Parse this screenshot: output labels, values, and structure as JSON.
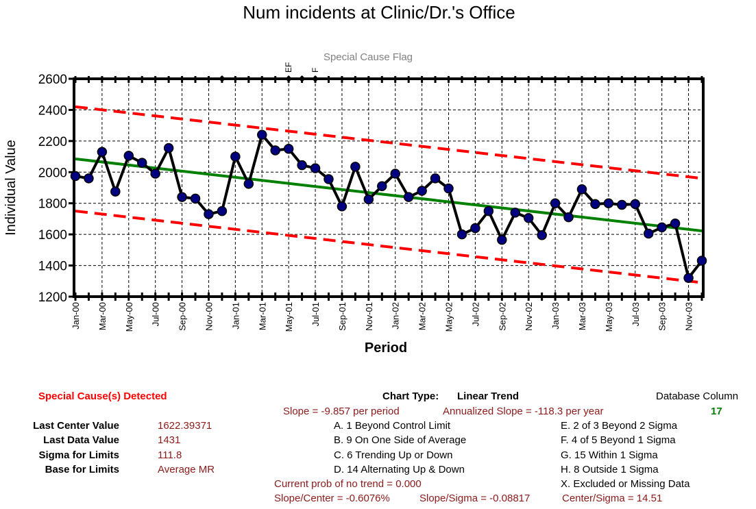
{
  "chart_data": {
    "type": "line",
    "title": "Num incidents at Clinic/Dr.'s Office",
    "xlabel": "Period",
    "ylabel": "Individual Value",
    "ylim": [
      1200,
      2600
    ],
    "yticks": [
      1200,
      1400,
      1600,
      1800,
      2000,
      2200,
      2400,
      2600
    ],
    "x_tick_labels": [
      "Jan-00",
      "Mar-00",
      "May-00",
      "Jul-00",
      "Sep-00",
      "Nov-00",
      "Jan-01",
      "Mar-01",
      "May-01",
      "Jul-01",
      "Sep-01",
      "Nov-01",
      "Jan-02",
      "Mar-02",
      "May-02",
      "Jul-02",
      "Sep-02",
      "Nov-02",
      "Jan-03",
      "Mar-03",
      "May-03",
      "Jul-03",
      "Sep-03",
      "Nov-03"
    ],
    "periods": 48,
    "grid": true,
    "series": [
      {
        "name": "",
        "values": [
          1975,
          1960,
          2130,
          1875,
          2105,
          2060,
          1990,
          2155,
          1840,
          1830,
          1730,
          1750,
          2100,
          1925,
          2240,
          2140,
          2150,
          2045,
          2025,
          1955,
          1780,
          2035,
          1825,
          1910,
          1990,
          1840,
          1880,
          1960,
          1895,
          1600,
          1640,
          1750,
          1565,
          1740,
          1705,
          1595,
          1800,
          1710,
          1890,
          1795,
          1800,
          1790,
          1795,
          1605,
          1645,
          1670,
          1320,
          1431
        ]
      }
    ],
    "center_line": {
      "start": 2085,
      "end": 1622.39371
    },
    "ucl": {
      "start": 2420,
      "end": 1960
    },
    "lcl": {
      "start": 1750,
      "end": 1290
    },
    "special_cause_flag_title": "Special Cause Flag",
    "flags": [
      {
        "index": 11,
        "label": ""
      },
      {
        "index": 16,
        "label": "EF"
      },
      {
        "index": 17,
        "label": ""
      },
      {
        "index": 18,
        "label": "F"
      }
    ],
    "colors": {
      "line": "#000000",
      "marker": "#000080",
      "center": "#008000",
      "limits": "#ff0000"
    }
  },
  "panel": {
    "special_cause": "Special Cause(s) Detected",
    "rows": [
      {
        "label": "Last Center Value",
        "value": "1622.39371"
      },
      {
        "label": "Last Data Value",
        "value": "1431"
      },
      {
        "label": "Sigma for Limits",
        "value": "111.8"
      },
      {
        "label": "Base for Limits",
        "value": "Average MR"
      }
    ],
    "chart_type_label": "Chart Type:",
    "chart_type_value": "Linear Trend",
    "slope": "Slope = -9.857 per period",
    "annualized": "Annualized Slope = -118.3 per year",
    "rules_left": [
      "A.  1 Beyond Control Limit",
      "B.  9 On One Side of Average",
      "C.  6 Trending Up or Down",
      "D.  14 Alternating  Up & Down"
    ],
    "rules_right": [
      "E.  2 of 3 Beyond 2 Sigma",
      "F.  4 of 5 Beyond 1 Sigma",
      "G.  15 Within 1 Sigma",
      "H.  8 Outside 1 Sigma",
      "X.  Excluded or Missing Data"
    ],
    "prob": "Current prob of no trend = 0.000",
    "slope_center": "Slope/Center = -0.6076%",
    "slope_sigma": "Slope/Sigma = -0.08817",
    "center_sigma": "Center/Sigma = 14.51",
    "db_label": "Database Column",
    "db_value": "17"
  }
}
